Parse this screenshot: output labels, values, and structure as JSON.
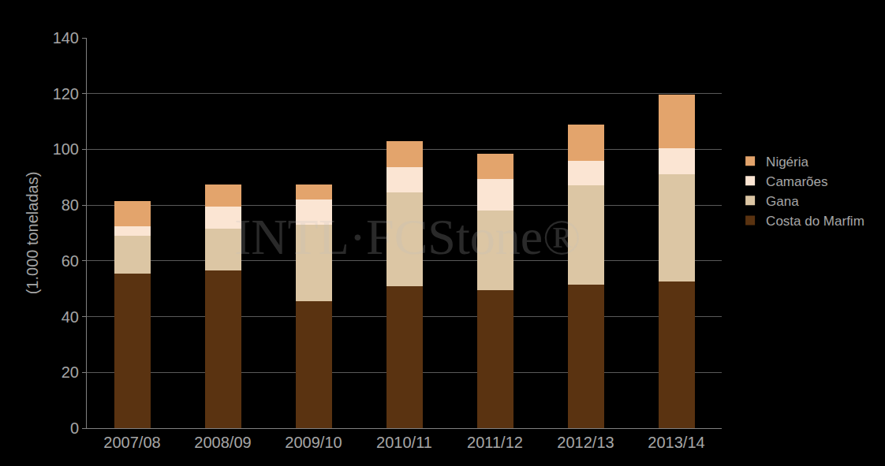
{
  "chart_data": {
    "type": "bar",
    "stacked": true,
    "y_label": "(1.000 toneladas)",
    "categories": [
      "2007/08",
      "2008/09",
      "2009/10",
      "2010/11",
      "2011/12",
      "2012/13",
      "2013/14"
    ],
    "series": [
      {
        "name": "Costa do Marfim",
        "color": "#5a3311",
        "values": [
          55.5,
          56.5,
          45.5,
          51,
          49.5,
          51.5,
          52.5
        ]
      },
      {
        "name": "Gana",
        "color": "#dcc6a4",
        "values": [
          13.5,
          15,
          27.5,
          33.5,
          28.5,
          35.5,
          38.5
        ]
      },
      {
        "name": "Camarões",
        "color": "#fbe5d3",
        "values": [
          3.5,
          8,
          9,
          9,
          11.5,
          9,
          9.5
        ]
      },
      {
        "name": "Nigéria",
        "color": "#e3a46c",
        "values": [
          9,
          8,
          5.5,
          9.5,
          9,
          13,
          19
        ]
      }
    ],
    "ylim": [
      0,
      140
    ],
    "yticks": [
      0,
      20,
      40,
      60,
      80,
      100,
      120,
      140
    ],
    "grid": true,
    "legend": "right",
    "annotations": [
      "INTL·FCStone®"
    ]
  }
}
